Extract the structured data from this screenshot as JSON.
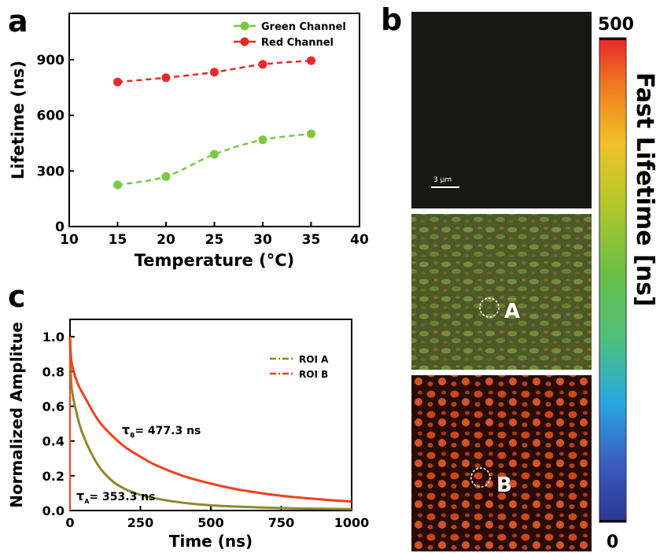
{
  "panels": {
    "a": "a",
    "b": "b",
    "c": "c"
  },
  "colors": {
    "green": "#7ac943",
    "red": "#e8282b",
    "olive": "#8c8a2a",
    "orange_red": "#f0401e"
  },
  "chart_data": [
    {
      "panel": "a",
      "type": "line",
      "xlabel": "Temperature (°C)",
      "ylabel": "Lifetime (ns)",
      "xlim": [
        10,
        40
      ],
      "ylim": [
        0,
        1150
      ],
      "xticks": [
        10,
        15,
        20,
        25,
        30,
        35,
        40
      ],
      "yticks": [
        0,
        300,
        600,
        900
      ],
      "x": [
        15,
        20,
        25,
        30,
        35
      ],
      "series": [
        {
          "name": "Green Channel",
          "color": "#7ac943",
          "values": [
            225,
            270,
            390,
            468,
            500
          ]
        },
        {
          "name": "Red Channel",
          "color": "#e8282b",
          "values": [
            780,
            803,
            833,
            875,
            895
          ]
        }
      ],
      "legend_position": "top-right",
      "grid": false
    },
    {
      "panel": "c",
      "type": "line",
      "xlabel": "Time (ns)",
      "ylabel": "Normalized Amplitue",
      "xlim": [
        0,
        1000
      ],
      "ylim": [
        0,
        1.1
      ],
      "xticks": [
        0,
        250,
        500,
        750,
        1000
      ],
      "yticks": [
        0.0,
        0.2,
        0.4,
        0.6,
        0.8,
        1.0
      ],
      "series": [
        {
          "name": "ROI A",
          "color": "#8c8a2a",
          "tau_ns": 353.3,
          "t": [
            0,
            5,
            25,
            50,
            100,
            150,
            200,
            250,
            300,
            400,
            500,
            600,
            750,
            900,
            1000
          ],
          "values": [
            1.0,
            0.72,
            0.55,
            0.42,
            0.26,
            0.17,
            0.12,
            0.09,
            0.07,
            0.045,
            0.03,
            0.022,
            0.014,
            0.01,
            0.008
          ]
        },
        {
          "name": "ROI B",
          "color": "#f0401e",
          "tau_ns": 477.3,
          "t": [
            0,
            5,
            25,
            50,
            100,
            150,
            200,
            250,
            300,
            400,
            500,
            600,
            750,
            900,
            1000
          ],
          "values": [
            1.0,
            0.86,
            0.74,
            0.66,
            0.52,
            0.43,
            0.36,
            0.31,
            0.265,
            0.2,
            0.155,
            0.12,
            0.085,
            0.063,
            0.052
          ]
        }
      ],
      "annotations": [
        {
          "symbol": "τ",
          "sub": "B",
          "text": "= 477.3 ns"
        },
        {
          "symbol": "τ",
          "sub": "A",
          "text": "= 353.3 ns"
        }
      ],
      "legend_position": "top-right",
      "grid": false
    }
  ],
  "panel_b": {
    "scalebar": "3 μm",
    "roi_a": "A",
    "roi_b": "B",
    "colorbar": {
      "max": "500",
      "min": "0",
      "label": "Fast Lifetime [ns]"
    }
  }
}
